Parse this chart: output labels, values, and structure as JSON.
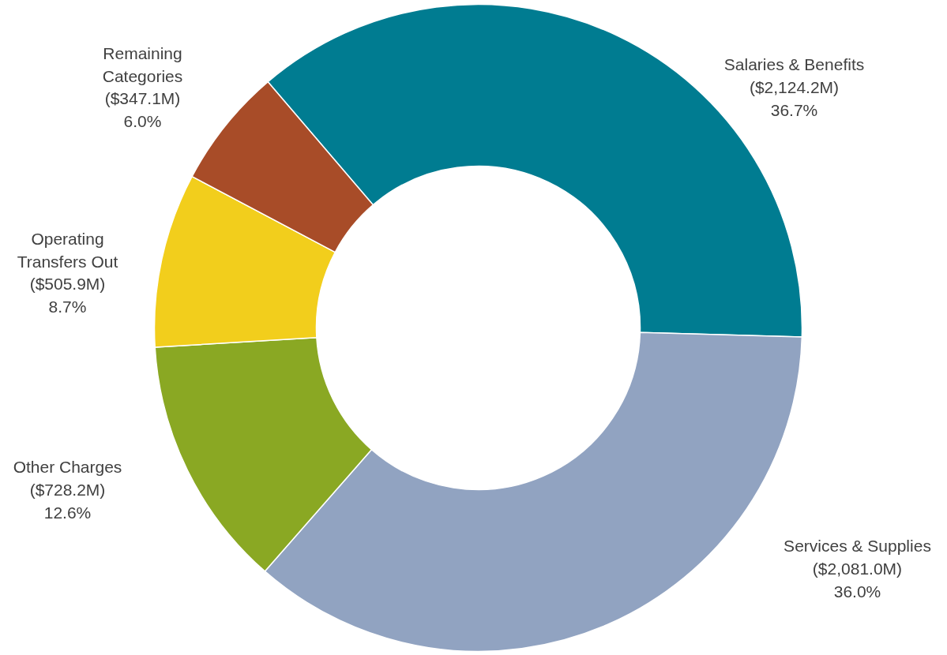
{
  "chart_data": {
    "type": "donut",
    "categories": [
      "Salaries & Benefits",
      "Services & Supplies",
      "Other Charges",
      "Operating\nTransfers Out",
      "Remaining\nCategories"
    ],
    "values": [
      36.7,
      36.0,
      12.6,
      8.7,
      6.0
    ],
    "colors": [
      "#007c91",
      "#91a3c1",
      "#8aa823",
      "#f2ce1c",
      "#a84c28"
    ],
    "value_labels": [
      "($2,124.2M)\n36.7%",
      "($2,081.0M)\n36.0%",
      "($728.2M)\n12.6%",
      "($505.9M)\n8.7%",
      "($347.1M)\n6.0%"
    ]
  }
}
